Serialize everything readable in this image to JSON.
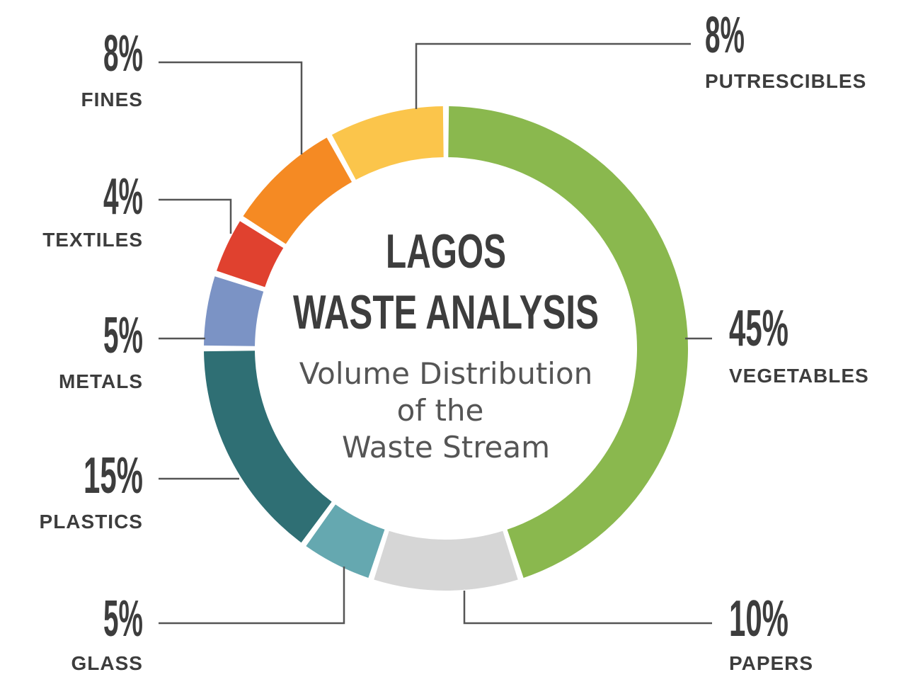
{
  "chart_data": {
    "type": "pie",
    "title_lines": [
      "LAGOS",
      "WASTE ANALYSIS"
    ],
    "subtitle_lines": [
      "Volume Distribution",
      "of the",
      "Waste Stream"
    ],
    "unit": "%",
    "slices": [
      {
        "label": "VEGETABLES",
        "value": 45,
        "display": "45%",
        "color": "#8ab84e"
      },
      {
        "label": "PAPERS",
        "value": 10,
        "display": "10%",
        "color": "#d6d6d6"
      },
      {
        "label": "GLASS",
        "value": 5,
        "display": "5%",
        "color": "#65a8b0"
      },
      {
        "label": "PLASTICS",
        "value": 15,
        "display": "15%",
        "color": "#2f6f74"
      },
      {
        "label": "METALS",
        "value": 5,
        "display": "5%",
        "color": "#7b93c5"
      },
      {
        "label": "TEXTILES",
        "value": 4,
        "display": "4%",
        "color": "#e0412f"
      },
      {
        "label": "FINES",
        "value": 8,
        "display": "8%",
        "color": "#f58a23"
      },
      {
        "label": "PUTRESCIBLES",
        "value": 8,
        "display": "8%",
        "color": "#fbc54b"
      }
    ],
    "legend": "none",
    "grid": false
  }
}
